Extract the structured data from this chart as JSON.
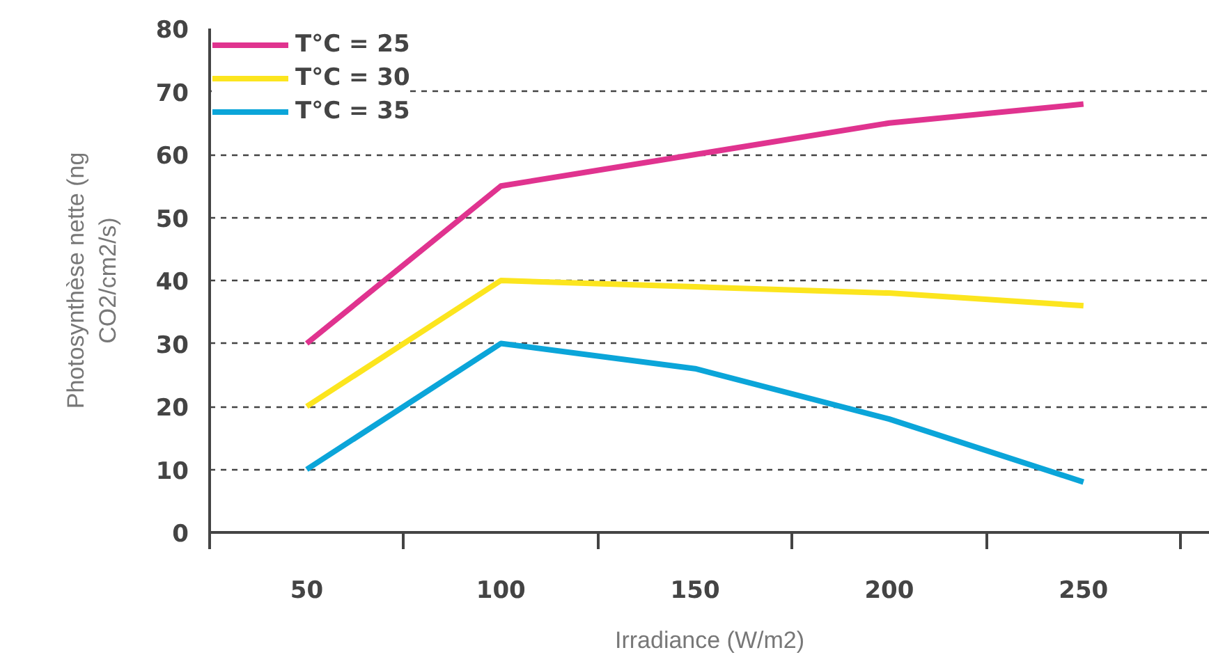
{
  "chart_data": {
    "type": "line",
    "xlabel": "Irradiance (W/m2)",
    "ylabel": "Photosynthèse nette (ng\nCO2/cm2/s)",
    "categories": [
      "50",
      "100",
      "150",
      "200",
      "250"
    ],
    "series": [
      {
        "name": "T°C = 25",
        "color": "#e0338f",
        "values": [
          30,
          55,
          60,
          65,
          68
        ]
      },
      {
        "name": "T°C = 30",
        "color": "#fce51e",
        "values": [
          20,
          40,
          39,
          38,
          36
        ]
      },
      {
        "name": "T°C = 35",
        "color": "#0ba5d9",
        "values": [
          10,
          30,
          26,
          18,
          8
        ]
      }
    ],
    "ylim": [
      0,
      80
    ],
    "yticks": [
      0,
      10,
      20,
      30,
      40,
      50,
      60,
      70,
      80
    ],
    "grid": "y",
    "legend": "top left",
    "marker": "none",
    "line_style": "solid"
  }
}
